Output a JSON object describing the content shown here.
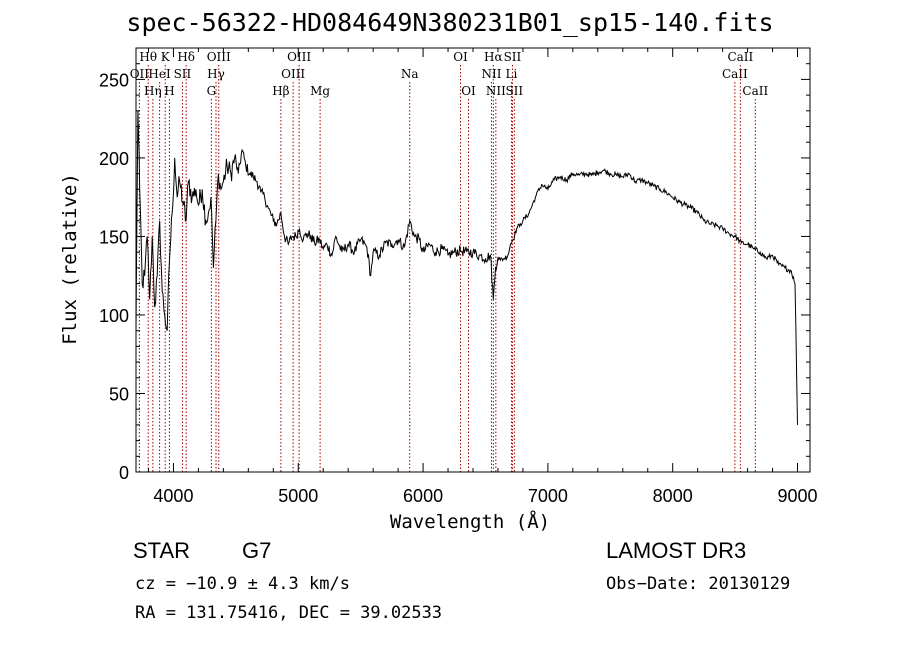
{
  "chart_data": {
    "type": "line",
    "title": "spec-56322-HD084649N380231B01_sp15-140.fits",
    "xlabel": "Wavelength (Å)",
    "ylabel": "Flux (relative)",
    "xlim": [
      3700,
      9100
    ],
    "ylim": [
      0,
      270
    ],
    "xticks": [
      4000,
      5000,
      6000,
      7000,
      8000,
      9000
    ],
    "xtick_labels": [
      "4000",
      "5000",
      "6000",
      "7000",
      "8000",
      "9000"
    ],
    "yticks": [
      0,
      50,
      100,
      150,
      200,
      250
    ],
    "ytick_labels": [
      "0",
      "50",
      "100",
      "150",
      "200",
      "250"
    ],
    "spectrum": {
      "x": [
        3700,
        3715,
        3730,
        3750,
        3770,
        3790,
        3810,
        3830,
        3850,
        3870,
        3890,
        3910,
        3930,
        3950,
        3968,
        3990,
        4010,
        4030,
        4050,
        4080,
        4101,
        4120,
        4150,
        4180,
        4200,
        4230,
        4260,
        4280,
        4300,
        4320,
        4340,
        4360,
        4380,
        4400,
        4430,
        4460,
        4490,
        4520,
        4550,
        4580,
        4610,
        4640,
        4670,
        4700,
        4730,
        4760,
        4800,
        4830,
        4861,
        4890,
        4920,
        4950,
        4980,
        5010,
        5040,
        5070,
        5100,
        5130,
        5170,
        5200,
        5230,
        5270,
        5300,
        5350,
        5400,
        5450,
        5500,
        5550,
        5580,
        5600,
        5650,
        5700,
        5750,
        5800,
        5850,
        5893,
        5930,
        5970,
        6000,
        6050,
        6100,
        6150,
        6200,
        6250,
        6300,
        6350,
        6400,
        6450,
        6500,
        6540,
        6563,
        6580,
        6600,
        6620,
        6650,
        6680,
        6700,
        6720,
        6750,
        6780,
        6800,
        6850,
        6900,
        6950,
        7000,
        7050,
        7100,
        7150,
        7200,
        7250,
        7300,
        7350,
        7400,
        7450,
        7500,
        7550,
        7600,
        7650,
        7700,
        7750,
        7800,
        7850,
        7900,
        7950,
        8000,
        8050,
        8100,
        8150,
        8200,
        8250,
        8300,
        8350,
        8400,
        8450,
        8500,
        8550,
        8600,
        8650,
        8700,
        8750,
        8800,
        8850,
        8900,
        8950,
        8980,
        9000
      ],
      "y": [
        90,
        230,
        180,
        120,
        125,
        150,
        110,
        150,
        105,
        125,
        160,
        115,
        100,
        90,
        135,
        165,
        200,
        175,
        185,
        170,
        160,
        185,
        175,
        180,
        170,
        180,
        160,
        165,
        175,
        130,
        160,
        190,
        180,
        185,
        195,
        190,
        200,
        190,
        205,
        195,
        190,
        188,
        185,
        178,
        175,
        168,
        160,
        158,
        165,
        150,
        145,
        150,
        150,
        155,
        148,
        152,
        150,
        146,
        148,
        142,
        145,
        138,
        150,
        140,
        145,
        140,
        148,
        143,
        125,
        140,
        138,
        146,
        145,
        148,
        143,
        160,
        150,
        148,
        140,
        145,
        140,
        142,
        138,
        140,
        141,
        140,
        140,
        138,
        136,
        138,
        110,
        130,
        137,
        135,
        136,
        138,
        145,
        148,
        155,
        158,
        160,
        165,
        175,
        183,
        180,
        186,
        188,
        186,
        190,
        189,
        190,
        189,
        191,
        192,
        190,
        189,
        188,
        190,
        185,
        186,
        184,
        182,
        180,
        178,
        175,
        172,
        170,
        168,
        165,
        160,
        158,
        157,
        155,
        152,
        150,
        146,
        145,
        142,
        140,
        136,
        138,
        132,
        130,
        128,
        120,
        30
      ]
    },
    "line_markers": [
      {
        "label": "OII",
        "wavelength": 3727,
        "row": 2
      },
      {
        "label": "Hθ",
        "wavelength": 3798,
        "row": 1
      },
      {
        "label": "Hη",
        "wavelength": 3835,
        "row": 3
      },
      {
        "label": "HeI",
        "wavelength": 3889,
        "row": 2
      },
      {
        "label": "K",
        "wavelength": 3934,
        "row": 1
      },
      {
        "label": "H",
        "wavelength": 3968,
        "row": 3
      },
      {
        "label": "SII",
        "wavelength": 4072,
        "row": 2
      },
      {
        "label": "Hδ",
        "wavelength": 4102,
        "row": 1
      },
      {
        "label": "G",
        "wavelength": 4304,
        "row": 3
      },
      {
        "label": "Hγ",
        "wavelength": 4341,
        "row": 2
      },
      {
        "label": "OIII",
        "wavelength": 4363,
        "row": 1
      },
      {
        "label": "Hβ",
        "wavelength": 4861,
        "row": 3
      },
      {
        "label": "OIII",
        "wavelength": 4959,
        "row": 2
      },
      {
        "label": "OIII",
        "wavelength": 5007,
        "row": 1
      },
      {
        "label": "Mg",
        "wavelength": 5175,
        "row": 3
      },
      {
        "label": "Na",
        "wavelength": 5893,
        "row": 2
      },
      {
        "label": "OI",
        "wavelength": 6300,
        "row": 1
      },
      {
        "label": "OI",
        "wavelength": 6364,
        "row": 3
      },
      {
        "label": "NII",
        "wavelength": 6548,
        "row": 2
      },
      {
        "label": "Hα",
        "wavelength": 6563,
        "row": 1
      },
      {
        "label": "NII",
        "wavelength": 6583,
        "row": 3
      },
      {
        "label": "Li",
        "wavelength": 6708,
        "row": 2
      },
      {
        "label": "SII",
        "wavelength": 6716,
        "row": 1
      },
      {
        "label": "SII",
        "wavelength": 6731,
        "row": 3
      },
      {
        "label": "CaII",
        "wavelength": 8498,
        "row": 2
      },
      {
        "label": "CaII",
        "wavelength": 8542,
        "row": 1
      },
      {
        "label": "CaII",
        "wavelength": 8662,
        "row": 3
      }
    ],
    "marker_color": "#aa0000"
  },
  "info": {
    "object_class": "STAR",
    "subclass": "G7",
    "survey": "LAMOST DR3",
    "cz": "cz = −10.9 ± 4.3 km/s",
    "obs_date": "Obs−Date: 20130129",
    "radec": "RA = 131.75416, DEC =  39.02533"
  }
}
